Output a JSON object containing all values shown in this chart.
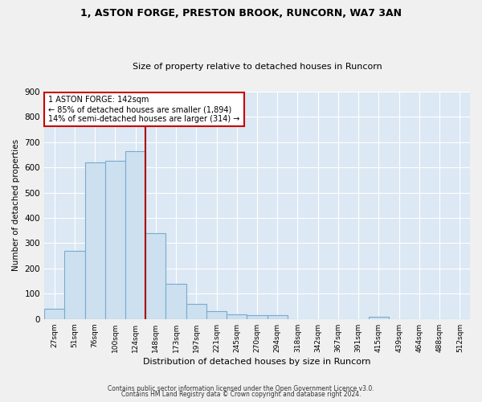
{
  "title1": "1, ASTON FORGE, PRESTON BROOK, RUNCORN, WA7 3AN",
  "title2": "Size of property relative to detached houses in Runcorn",
  "xlabel": "Distribution of detached houses by size in Runcorn",
  "ylabel": "Number of detached properties",
  "bar_labels": [
    "27sqm",
    "51sqm",
    "76sqm",
    "100sqm",
    "124sqm",
    "148sqm",
    "173sqm",
    "197sqm",
    "221sqm",
    "245sqm",
    "270sqm",
    "294sqm",
    "318sqm",
    "342sqm",
    "367sqm",
    "391sqm",
    "415sqm",
    "439sqm",
    "464sqm",
    "488sqm",
    "512sqm"
  ],
  "bar_values": [
    40,
    270,
    620,
    625,
    665,
    340,
    140,
    60,
    30,
    20,
    15,
    15,
    0,
    0,
    0,
    0,
    10,
    0,
    0,
    0,
    0
  ],
  "bar_color": "#cce0f0",
  "bar_edge_color": "#7aaacc",
  "vline_color": "#aa0000",
  "vline_x_index": 4.5,
  "annotation_text": "1 ASTON FORGE: 142sqm\n← 85% of detached houses are smaller (1,894)\n14% of semi-detached houses are larger (314) →",
  "annotation_box_color": "#ffffff",
  "annotation_box_edge": "#cc0000",
  "background_color": "#dce8f4",
  "grid_color": "#ffffff",
  "ylim": [
    0,
    900
  ],
  "yticks": [
    0,
    100,
    200,
    300,
    400,
    500,
    600,
    700,
    800,
    900
  ],
  "footer1": "Contains HM Land Registry data © Crown copyright and database right 2024.",
  "footer2": "Contains public sector information licensed under the Open Government Licence v3.0."
}
